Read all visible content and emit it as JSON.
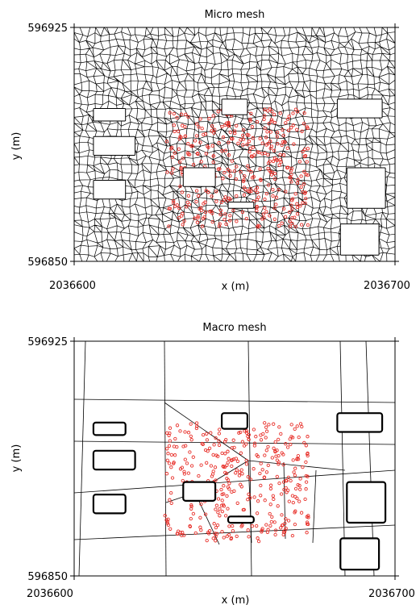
{
  "panels": [
    {
      "id": "micro",
      "title": "Micro mesh",
      "xlabel": "x (m)",
      "ylabel": "y (m)",
      "x_ticks": [
        "2036600",
        "2036700"
      ],
      "y_ticks": [
        "596925",
        "596850"
      ],
      "mesh_style": "dense",
      "point_color": "#e8302a"
    },
    {
      "id": "macro",
      "title": "Macro mesh",
      "xlabel": "x (m)",
      "ylabel": "y (m)",
      "x_ticks": [
        "2036600",
        "2036700"
      ],
      "y_ticks": [
        "596925",
        "596850"
      ],
      "mesh_style": "coarse",
      "point_color": "#e8302a"
    }
  ],
  "chart_data": [
    {
      "type": "scatter",
      "title": "Micro mesh",
      "xlabel": "x (m)",
      "ylabel": "y (m)",
      "xlim": [
        2036600,
        2036700
      ],
      "ylim": [
        596850,
        596925
      ],
      "buildings": [
        [
          2036646,
          596902,
          2036654,
          596897
        ],
        [
          2036634,
          596880,
          2036644,
          596874
        ],
        [
          2036606,
          596899,
          2036616,
          596895
        ],
        [
          2036606,
          596890,
          2036619,
          596884
        ],
        [
          2036606,
          596876,
          2036616,
          596870
        ],
        [
          2036648,
          596869,
          2036656,
          596867
        ],
        [
          2036682,
          596902,
          2036696,
          596896
        ],
        [
          2036685,
          596880,
          2036697,
          596867
        ],
        [
          2036683,
          596862,
          2036695,
          596852
        ]
      ]
    },
    {
      "type": "scatter",
      "title": "Macro mesh",
      "xlabel": "x (m)",
      "ylabel": "y (m)",
      "xlim": [
        2036600,
        2036700
      ],
      "ylim": [
        596850,
        596925
      ],
      "buildings": [
        [
          2036646,
          596902,
          2036654,
          596897
        ],
        [
          2036634,
          596880,
          2036644,
          596874
        ],
        [
          2036606,
          596899,
          2036616,
          596895
        ],
        [
          2036606,
          596890,
          2036619,
          596884
        ],
        [
          2036606,
          596876,
          2036616,
          596870
        ],
        [
          2036648,
          596869,
          2036656,
          596867
        ],
        [
          2036682,
          596902,
          2036696,
          596896
        ],
        [
          2036685,
          596880,
          2036697,
          596867
        ],
        [
          2036683,
          596862,
          2036695,
          596852
        ]
      ]
    }
  ]
}
